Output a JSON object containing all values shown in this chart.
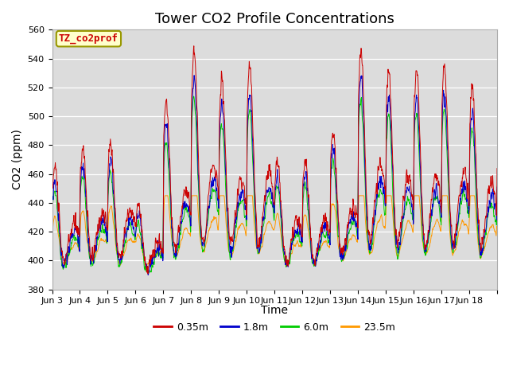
{
  "title": "Tower CO2 Profile Concentrations",
  "ylabel": "CO2 (ppm)",
  "xlabel": "Time",
  "annotation": "TZ_co2prof",
  "ylim": [
    380,
    560
  ],
  "yticks": [
    380,
    400,
    420,
    440,
    460,
    480,
    500,
    520,
    540,
    560
  ],
  "series_labels": [
    "0.35m",
    "1.8m",
    "6.0m",
    "23.5m"
  ],
  "series_colors": [
    "#cc0000",
    "#0000cc",
    "#00cc00",
    "#ff9900"
  ],
  "x_tick_labels": [
    "Jun 3",
    "Jun 4",
    "Jun 5",
    "Jun 6",
    "Jun 7",
    "Jun 8",
    "Jun 9",
    "Jun 10",
    "Jun 11",
    "Jun 12",
    "Jun 13",
    "Jun 14",
    "Jun 15",
    "Jun 16",
    "Jun 17",
    "Jun 18"
  ],
  "title_fontsize": 13,
  "axis_bg_color": "#dcdcdc",
  "fig_bg_color": "#ffffff",
  "grid_color": "#ffffff",
  "n_days": 16,
  "pts_per_day": 96,
  "base_co2": 390,
  "annotation_fontsize": 9,
  "annotation_color": "#cc0000",
  "annotation_bg": "#ffffcc",
  "annotation_edge": "#999900",
  "tick_fontsize": 8,
  "axis_label_fontsize": 10,
  "linewidth": 0.7
}
